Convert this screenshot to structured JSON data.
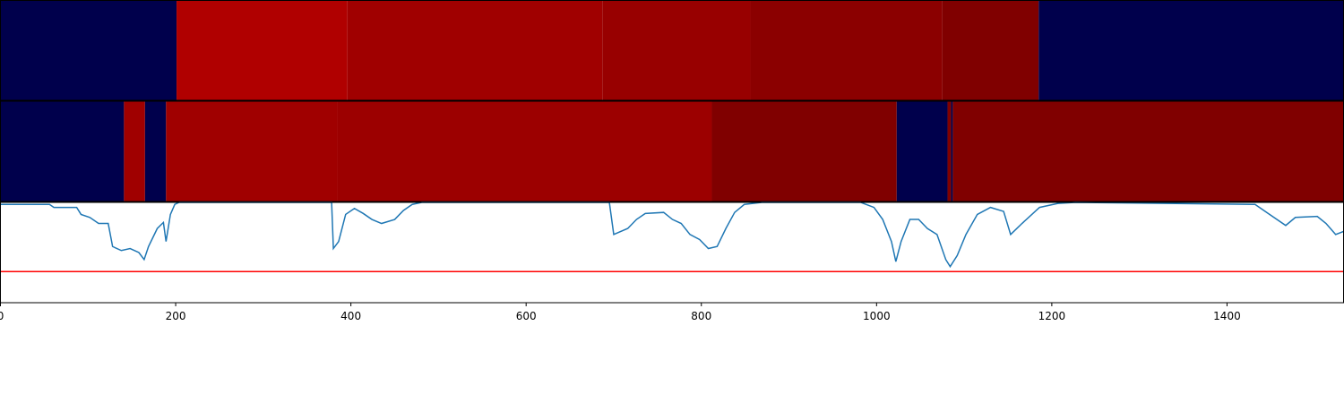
{
  "chart_data": [
    {
      "type": "segments",
      "xlim": [
        0,
        1533
      ],
      "segments": [
        {
          "start": 0,
          "end": 201,
          "color": "#00004c"
        },
        {
          "start": 201,
          "end": 396,
          "color": "#b00000"
        },
        {
          "start": 396,
          "end": 687,
          "color": "#a00000"
        },
        {
          "start": 687,
          "end": 856,
          "color": "#980000"
        },
        {
          "start": 856,
          "end": 1075,
          "color": "#8b0000"
        },
        {
          "start": 1075,
          "end": 1185,
          "color": "#800000"
        },
        {
          "start": 1185,
          "end": 1533,
          "color": "#00004c"
        }
      ]
    },
    {
      "type": "segments",
      "xlim": [
        0,
        1533
      ],
      "segments": [
        {
          "start": 0,
          "end": 141,
          "color": "#00004c"
        },
        {
          "start": 141,
          "end": 165,
          "color": "#a00000"
        },
        {
          "start": 165,
          "end": 189,
          "color": "#00004c"
        },
        {
          "start": 189,
          "end": 385,
          "color": "#a00000"
        },
        {
          "start": 385,
          "end": 812,
          "color": "#9c0000"
        },
        {
          "start": 812,
          "end": 1023,
          "color": "#800000"
        },
        {
          "start": 1023,
          "end": 1081,
          "color": "#00004c"
        },
        {
          "start": 1081,
          "end": 1085,
          "color": "#800000"
        },
        {
          "start": 1085,
          "end": 1087,
          "color": "#00004c"
        },
        {
          "start": 1087,
          "end": 1533,
          "color": "#800000"
        }
      ]
    },
    {
      "type": "line",
      "xlim": [
        0,
        1533
      ],
      "ylim": [
        0,
        1
      ],
      "xticks": [
        0,
        200,
        400,
        600,
        800,
        1000,
        1200,
        1400
      ],
      "color": "#1f77b4",
      "hline": {
        "value": 0.31,
        "color": "#ff0000"
      },
      "x": [
        0,
        56,
        61,
        87,
        92,
        102,
        112,
        123,
        128,
        138,
        148,
        158,
        164,
        169,
        179,
        186,
        189,
        194,
        199,
        204,
        378,
        380,
        386,
        394,
        404,
        414,
        424,
        435,
        450,
        460,
        470,
        481,
        695,
        700,
        716,
        726,
        736,
        757,
        767,
        777,
        787,
        798,
        808,
        818,
        828,
        838,
        849,
        869,
        982,
        997,
        1007,
        1017,
        1022,
        1028,
        1038,
        1048,
        1058,
        1069,
        1079,
        1084,
        1092,
        1102,
        1115,
        1130,
        1145,
        1153,
        1166,
        1186,
        1207,
        1227,
        1432,
        1447,
        1467,
        1478,
        1503,
        1513,
        1524,
        1533
      ],
      "values": [
        0.98,
        0.98,
        0.95,
        0.95,
        0.88,
        0.85,
        0.79,
        0.79,
        0.56,
        0.52,
        0.54,
        0.5,
        0.43,
        0.56,
        0.74,
        0.8,
        0.61,
        0.88,
        0.98,
        1.0,
        1.0,
        0.54,
        0.61,
        0.88,
        0.94,
        0.89,
        0.83,
        0.79,
        0.83,
        0.92,
        0.98,
        1.0,
        1.0,
        0.68,
        0.74,
        0.83,
        0.89,
        0.9,
        0.83,
        0.79,
        0.68,
        0.63,
        0.54,
        0.56,
        0.74,
        0.9,
        0.98,
        1.0,
        1.0,
        0.95,
        0.83,
        0.61,
        0.41,
        0.61,
        0.83,
        0.83,
        0.74,
        0.68,
        0.43,
        0.36,
        0.47,
        0.68,
        0.88,
        0.95,
        0.91,
        0.68,
        0.79,
        0.95,
        0.99,
        1.0,
        0.98,
        0.89,
        0.77,
        0.85,
        0.86,
        0.79,
        0.68,
        0.71
      ]
    }
  ]
}
